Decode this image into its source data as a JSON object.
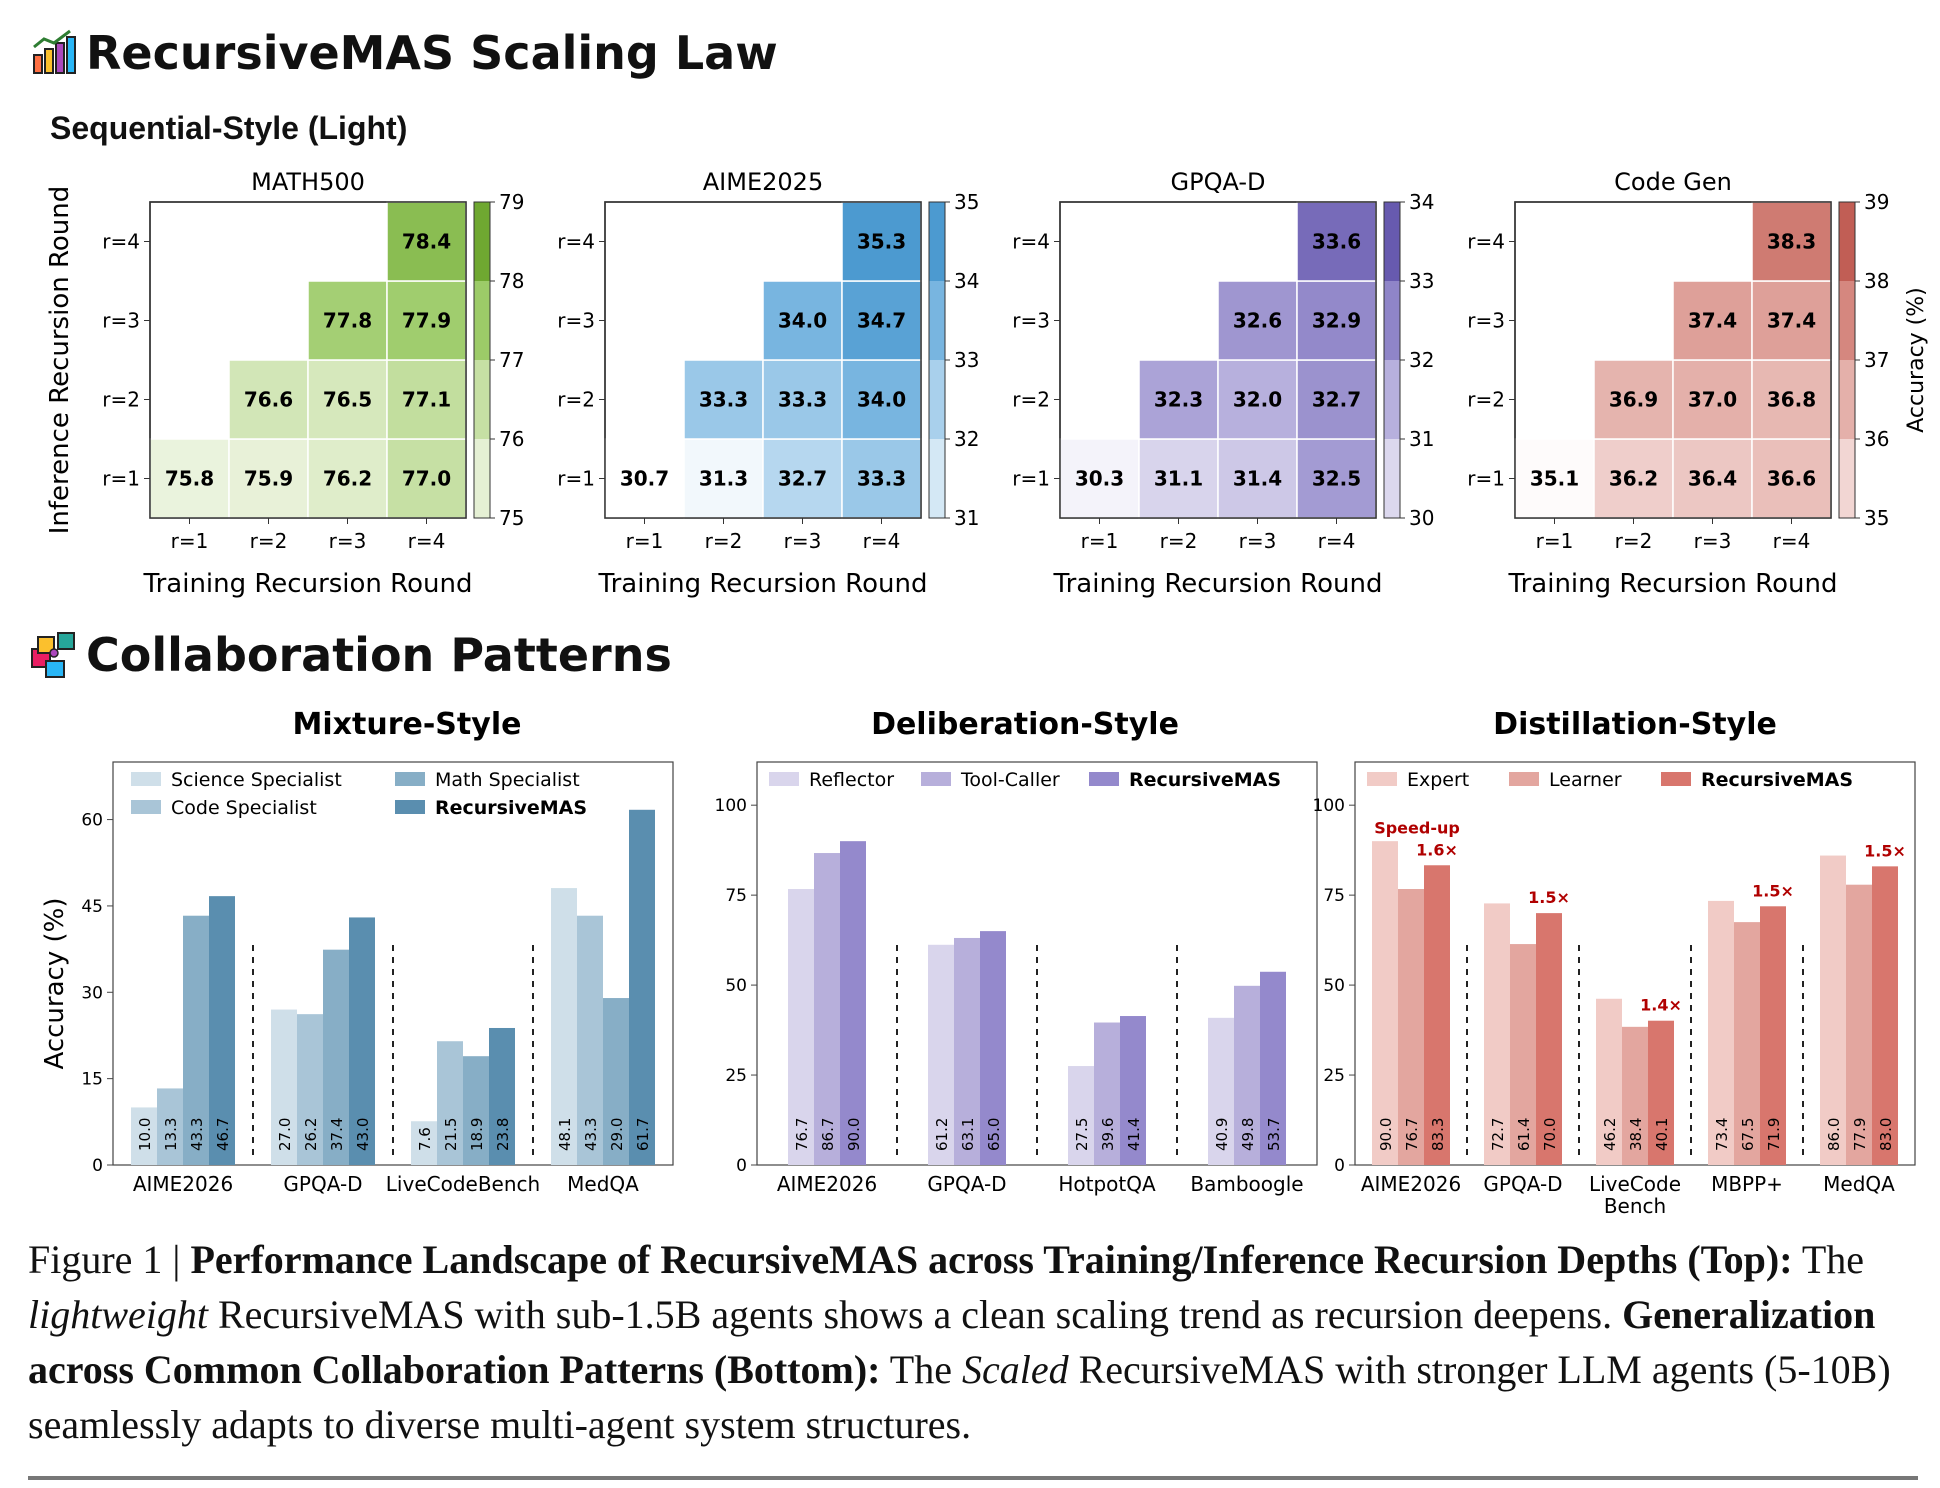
{
  "header": {
    "scaling_title": "RecursiveMAS Scaling Law",
    "scaling_icon": "bar-chart-icon",
    "subsection": "Sequential-Style (Light)",
    "patterns_title": "Collaboration Patterns",
    "patterns_icon": "puzzle-icon"
  },
  "chart_data": [
    {
      "type": "heatmap",
      "title": "MATH500",
      "xlabel": "Training Recursion Round",
      "ylabel": "Inference Recursion Round",
      "x_ticks": [
        "r=1",
        "r=2",
        "r=3",
        "r=4"
      ],
      "y_ticks": [
        "r=1",
        "r=2",
        "r=3",
        "r=4"
      ],
      "values": [
        [
          75.8,
          75.9,
          76.2,
          77.0
        ],
        [
          null,
          76.6,
          76.5,
          77.1
        ],
        [
          null,
          null,
          77.8,
          77.9
        ],
        [
          null,
          null,
          null,
          78.4
        ]
      ],
      "colorbar": {
        "range": [
          75,
          79
        ],
        "ticks": [
          75,
          76,
          77,
          78,
          79
        ],
        "colors": [
          "#ffffff",
          "#e5f0d4",
          "#c6e0a4",
          "#9ccb68",
          "#6fa831"
        ]
      }
    },
    {
      "type": "heatmap",
      "title": "AIME2025",
      "xlabel": "Training Recursion Round",
      "ylabel": "",
      "x_ticks": [
        "r=1",
        "r=2",
        "r=3",
        "r=4"
      ],
      "y_ticks": [
        "r=1",
        "r=2",
        "r=3",
        "r=4"
      ],
      "values": [
        [
          30.7,
          31.3,
          32.7,
          33.3
        ],
        [
          null,
          33.3,
          33.3,
          34.0
        ],
        [
          null,
          null,
          34.0,
          34.7
        ],
        [
          null,
          null,
          null,
          35.3
        ]
      ],
      "colorbar": {
        "range": [
          31,
          35
        ],
        "ticks": [
          31,
          32,
          33,
          34,
          35
        ],
        "colors": [
          "#ffffff",
          "#d4e8f5",
          "#a9d0ec",
          "#78b5e0",
          "#4c9ad0"
        ]
      }
    },
    {
      "type": "heatmap",
      "title": "GPQA-D",
      "xlabel": "Training Recursion Round",
      "ylabel": "",
      "x_ticks": [
        "r=1",
        "r=2",
        "r=3",
        "r=4"
      ],
      "y_ticks": [
        "r=1",
        "r=2",
        "r=3",
        "r=4"
      ],
      "values": [
        [
          30.3,
          31.1,
          31.4,
          32.5
        ],
        [
          null,
          32.3,
          32.0,
          32.7
        ],
        [
          null,
          null,
          32.6,
          32.9
        ],
        [
          null,
          null,
          null,
          33.6
        ]
      ],
      "colorbar": {
        "range": [
          30,
          34
        ],
        "ticks": [
          30,
          31,
          32,
          33,
          34
        ],
        "colors": [
          "#ffffff",
          "#dcd8ee",
          "#b7b0dd",
          "#8f85c8",
          "#675aaf"
        ]
      }
    },
    {
      "type": "heatmap",
      "title": "Code Gen",
      "xlabel": "Training Recursion Round",
      "ylabel": "",
      "x_ticks": [
        "r=1",
        "r=2",
        "r=3",
        "r=4"
      ],
      "y_ticks": [
        "r=1",
        "r=2",
        "r=3",
        "r=4"
      ],
      "values": [
        [
          35.1,
          36.2,
          36.4,
          36.6
        ],
        [
          null,
          36.9,
          37.0,
          36.8
        ],
        [
          null,
          null,
          37.4,
          37.4
        ],
        [
          null,
          null,
          null,
          38.3
        ]
      ],
      "colorbar": {
        "range": [
          35,
          39
        ],
        "ticks": [
          35,
          36,
          37,
          38,
          39
        ],
        "label": "Accuracy (%)",
        "colors": [
          "#ffffff",
          "#f2d6d3",
          "#e4b0aa",
          "#d5877f",
          "#c15e55"
        ]
      }
    },
    {
      "type": "bar",
      "title": "Mixture-Style",
      "ylabel": "Accuracy (%)",
      "ylim": [
        0,
        70
      ],
      "yticks": [
        0,
        15,
        30,
        45,
        60
      ],
      "categories": [
        "AIME2026",
        "GPQA-D",
        "LiveCodeBench",
        "MedQA"
      ],
      "series": [
        {
          "name": "Science Specialist",
          "color": "#cfdfe9",
          "values": [
            10.0,
            27.0,
            7.6,
            48.1
          ]
        },
        {
          "name": "Code Specialist",
          "color": "#a9c5d7",
          "values": [
            13.3,
            26.2,
            21.5,
            43.3
          ]
        },
        {
          "name": "Math Specialist",
          "color": "#87aec6",
          "values": [
            43.3,
            37.4,
            18.9,
            29.0
          ]
        },
        {
          "name": "RecursiveMAS",
          "color": "#5a8eaf",
          "values": [
            46.7,
            43.0,
            23.8,
            61.7
          ]
        }
      ],
      "legend": "top-left, two columns"
    },
    {
      "type": "bar",
      "title": "Deliberation-Style",
      "ylabel": "",
      "ylim": [
        0,
        112
      ],
      "yticks": [
        0,
        25,
        50,
        75,
        100
      ],
      "categories": [
        "AIME2026",
        "GPQA-D",
        "HotpotQA",
        "Bamboogle"
      ],
      "series": [
        {
          "name": "Reflector",
          "color": "#d9d5ec",
          "values": [
            76.7,
            61.2,
            27.5,
            40.9
          ]
        },
        {
          "name": "Tool-Caller",
          "color": "#b7afdb",
          "values": [
            86.7,
            63.1,
            39.6,
            49.8
          ]
        },
        {
          "name": "RecursiveMAS",
          "color": "#9489cc",
          "values": [
            90.0,
            65.0,
            41.4,
            53.7
          ]
        }
      ],
      "legend": "top"
    },
    {
      "type": "bar",
      "title": "Distillation-Style",
      "ylabel": "",
      "ylim": [
        0,
        112
      ],
      "yticks": [
        0,
        25,
        50,
        75,
        100
      ],
      "categories": [
        "AIME2026",
        "GPQA-D",
        "LiveCode Bench",
        "MBPP+",
        "MedQA"
      ],
      "series": [
        {
          "name": "Expert",
          "color": "#f1cbc6",
          "values": [
            90.0,
            72.7,
            46.2,
            73.4,
            86.0
          ]
        },
        {
          "name": "Learner",
          "color": "#e3a69f",
          "values": [
            76.7,
            61.4,
            38.4,
            67.5,
            77.9
          ]
        },
        {
          "name": "RecursiveMAS",
          "color": "#d8766d",
          "values": [
            83.3,
            70.0,
            40.1,
            71.9,
            83.0
          ]
        }
      ],
      "speedup_title": "Speed-up",
      "speedups": [
        "1.6×",
        "1.5×",
        "1.4×",
        "1.5×",
        "1.5×"
      ],
      "legend": "top"
    }
  ],
  "caption": {
    "fig_label": "Figure 1 | ",
    "b1": "Performance Landscape of RecursiveMAS across Training/Inference Recursion Depths (Top):",
    "t1": " The ",
    "i1": "lightweight",
    "t2": " RecursiveMAS with sub-1.5B agents shows a clean scaling trend as recursion deepens. ",
    "b2": "Generalization across Common Collaboration Patterns (Bottom):",
    "t3": " The ",
    "i2": "Scaled",
    "t4": " RecursiveMAS with stronger LLM agents (5-10B) seamlessly adapts to diverse multi-agent system structures."
  }
}
